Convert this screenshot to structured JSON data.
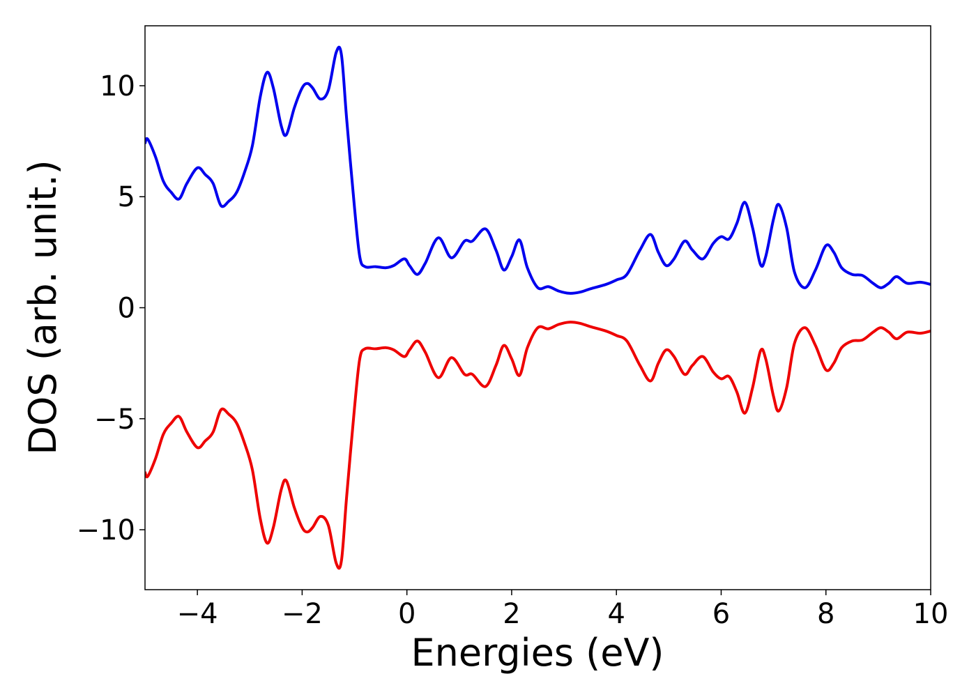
{
  "chart_data": {
    "type": "line",
    "xlabel": "Energies (eV)",
    "ylabel": "DOS (arb. unit.)",
    "x": [
      -5,
      -4.95,
      -4.8,
      -4.65,
      -4.5,
      -4.35,
      -4.2,
      -4.0,
      -3.85,
      -3.7,
      -3.55,
      -3.4,
      -3.25,
      -3.1,
      -2.95,
      -2.8,
      -2.67,
      -2.55,
      -2.4,
      -2.3,
      -2.15,
      -2.0,
      -1.9,
      -1.8,
      -1.65,
      -1.5,
      -1.35,
      -1.25,
      -1.15,
      -1.0,
      -0.9,
      -0.8,
      -0.6,
      -0.4,
      -0.25,
      -0.05,
      0.05,
      0.2,
      0.35,
      0.6,
      0.85,
      1.1,
      1.25,
      1.5,
      1.7,
      1.85,
      2.0,
      2.15,
      2.3,
      2.5,
      2.7,
      2.9,
      3.1,
      3.3,
      3.5,
      3.8,
      4.0,
      4.2,
      4.45,
      4.65,
      4.8,
      4.95,
      5.1,
      5.3,
      5.45,
      5.65,
      5.85,
      6.0,
      6.15,
      6.3,
      6.45,
      6.6,
      6.75,
      6.85,
      7.0,
      7.1,
      7.25,
      7.4,
      7.6,
      7.8,
      8.0,
      8.15,
      8.3,
      8.5,
      8.7,
      8.9,
      9.05,
      9.2,
      9.35,
      9.55,
      9.8,
      10.0
    ],
    "series": [
      {
        "color": "#0000ee",
        "values": [
          7.4,
          7.6,
          6.8,
          5.7,
          5.2,
          4.9,
          5.6,
          6.3,
          6.0,
          5.6,
          4.6,
          4.8,
          5.2,
          6.1,
          7.3,
          9.5,
          10.6,
          9.9,
          8.2,
          7.8,
          9.0,
          9.9,
          10.1,
          9.9,
          9.4,
          9.8,
          11.5,
          11.4,
          8.5,
          4.5,
          2.3,
          1.85,
          1.85,
          1.8,
          1.9,
          2.2,
          1.9,
          1.5,
          2.0,
          3.15,
          2.25,
          3.0,
          3.0,
          3.55,
          2.6,
          1.7,
          2.3,
          3.05,
          1.8,
          0.9,
          0.95,
          0.75,
          0.65,
          0.7,
          0.85,
          1.05,
          1.25,
          1.5,
          2.6,
          3.3,
          2.5,
          1.9,
          2.2,
          3.0,
          2.6,
          2.2,
          2.9,
          3.2,
          3.1,
          3.8,
          4.75,
          3.6,
          1.95,
          2.3,
          4.0,
          4.65,
          3.6,
          1.6,
          0.9,
          1.7,
          2.8,
          2.5,
          1.8,
          1.5,
          1.45,
          1.1,
          0.9,
          1.1,
          1.4,
          1.1,
          1.15,
          1.05
        ]
      },
      {
        "color": "#ee0000",
        "values": [
          -7.4,
          -7.6,
          -6.8,
          -5.7,
          -5.2,
          -4.9,
          -5.6,
          -6.3,
          -6.0,
          -5.6,
          -4.6,
          -4.8,
          -5.2,
          -6.1,
          -7.3,
          -9.5,
          -10.6,
          -9.9,
          -8.2,
          -7.8,
          -9.0,
          -9.9,
          -10.1,
          -9.9,
          -9.4,
          -9.8,
          -11.5,
          -11.4,
          -8.5,
          -4.5,
          -2.3,
          -1.85,
          -1.85,
          -1.8,
          -1.9,
          -2.2,
          -1.9,
          -1.5,
          -2.0,
          -3.15,
          -2.25,
          -3.0,
          -3.0,
          -3.55,
          -2.6,
          -1.7,
          -2.3,
          -3.05,
          -1.8,
          -0.9,
          -0.95,
          -0.75,
          -0.65,
          -0.7,
          -0.85,
          -1.05,
          -1.25,
          -1.5,
          -2.6,
          -3.3,
          -2.5,
          -1.9,
          -2.2,
          -3.0,
          -2.6,
          -2.2,
          -2.9,
          -3.2,
          -3.1,
          -3.8,
          -4.75,
          -3.6,
          -1.95,
          -2.3,
          -4.0,
          -4.65,
          -3.6,
          -1.6,
          -0.9,
          -1.7,
          -2.8,
          -2.5,
          -1.8,
          -1.5,
          -1.45,
          -1.1,
          -0.9,
          -1.1,
          -1.4,
          -1.1,
          -1.15,
          -1.05
        ]
      }
    ],
    "xlim": [
      -5,
      10
    ],
    "xticks": [
      {
        "value": -4,
        "label": "−4"
      },
      {
        "value": -2,
        "label": "−2"
      },
      0,
      2,
      4,
      6,
      8,
      10
    ],
    "ylim": [
      -12.7,
      12.7
    ],
    "yticks": [
      {
        "value": -10,
        "label": "−10"
      },
      {
        "value": -5,
        "label": "−5"
      },
      0,
      5,
      10
    ]
  }
}
